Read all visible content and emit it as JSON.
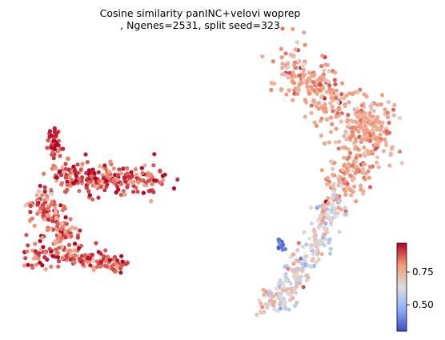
{
  "chart_data": {
    "type": "scatter",
    "title_line1": "Cosine similarity panINC+velovi woprep",
    "title_line2": ", Ngenes=2531, split seed=323",
    "xlabel": "",
    "ylabel": "",
    "axes_visible": false,
    "grid": false,
    "colorbar": {
      "colormap": "coolwarm",
      "range": [
        0.42,
        0.95
      ],
      "ticks": [
        0.5,
        0.75
      ],
      "tick_labels": [
        "0.50",
        "0.75"
      ],
      "placement": "bottom-right"
    },
    "colors": {
      "low": "#3b4cc0",
      "mid": "#dddddd",
      "high": "#b40426"
    },
    "clusters": [
      {
        "id": "left-top-stem",
        "value_mean": 0.9,
        "value_sd": 0.04
      },
      {
        "id": "left-upper-band",
        "value_mean": 0.88,
        "value_sd": 0.05
      },
      {
        "id": "left-middle",
        "value_mean": 0.85,
        "value_sd": 0.06
      },
      {
        "id": "left-lower-band",
        "value_mean": 0.87,
        "value_sd": 0.06
      },
      {
        "id": "right-top-blob",
        "value_mean": 0.8,
        "value_sd": 0.04
      },
      {
        "id": "right-stem",
        "value_mean": 0.72,
        "value_sd": 0.07
      },
      {
        "id": "right-outlier",
        "value_mean": 0.48,
        "value_sd": 0.03
      }
    ]
  }
}
